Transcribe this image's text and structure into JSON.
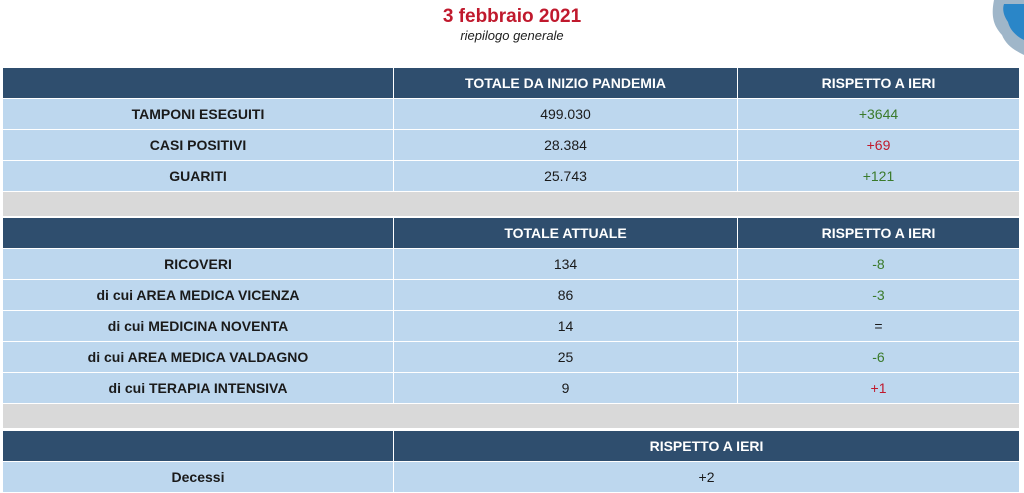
{
  "header": {
    "date": "3 febbraio 2021",
    "subtitle": "riepilogo generale"
  },
  "colors": {
    "header_bg": "#2f4e6e",
    "row_bg": "#bdd7ee",
    "spacer_bg": "#d9d9d9",
    "title": "#c0192d",
    "green": "#3a7a2b",
    "red": "#c0192d"
  },
  "table1": {
    "headers": [
      "",
      "TOTALE DA INIZIO PANDEMIA",
      "RISPETTO A IERI"
    ],
    "rows": [
      {
        "label": "TAMPONI ESEGUITI",
        "total": "499.030",
        "delta": "+3644",
        "delta_color": "green"
      },
      {
        "label": "CASI POSITIVI",
        "total": "28.384",
        "delta": "+69",
        "delta_color": "red"
      },
      {
        "label": "GUARITI",
        "total": "25.743",
        "delta": "+121",
        "delta_color": "green"
      }
    ]
  },
  "table2": {
    "headers": [
      "",
      "TOTALE ATTUALE",
      "RISPETTO A IERI"
    ],
    "rows": [
      {
        "label": "RICOVERI",
        "total": "134",
        "delta": "-8",
        "delta_color": "green"
      },
      {
        "label": "di cui AREA MEDICA VICENZA",
        "total": "86",
        "delta": "-3",
        "delta_color": "green"
      },
      {
        "label": "di cui MEDICINA NOVENTA",
        "total": "14",
        "delta": "=",
        "delta_color": "black"
      },
      {
        "label": "di cui AREA MEDICA VALDAGNO",
        "total": "25",
        "delta": "-6",
        "delta_color": "green"
      },
      {
        "label": "di cui TERAPIA INTENSIVA",
        "total": "9",
        "delta": "+1",
        "delta_color": "red"
      }
    ]
  },
  "table3": {
    "headers": [
      "",
      "RISPETTO A IERI"
    ],
    "rows": [
      {
        "label": "Decessi",
        "delta": "+2"
      }
    ]
  }
}
